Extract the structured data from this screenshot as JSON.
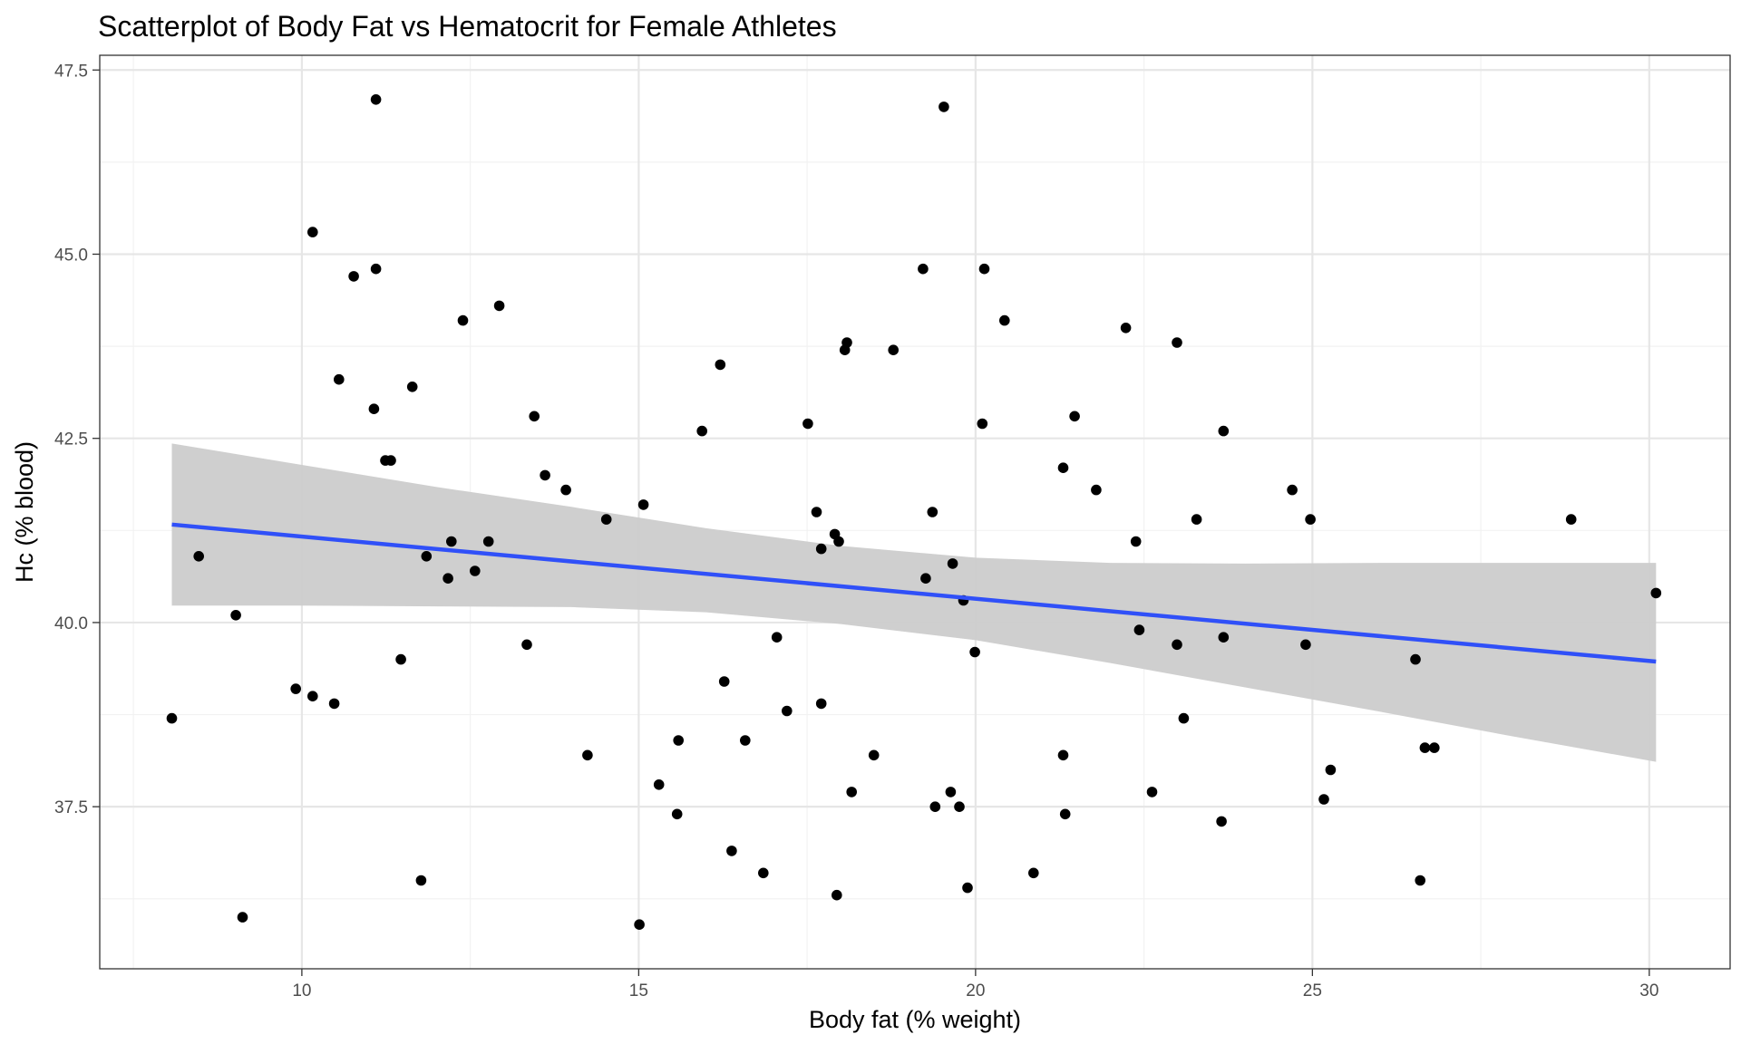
{
  "chart_data": {
    "type": "scatter",
    "title": "Scatterplot of Body Fat vs Hematocrit for Female Athletes",
    "xlabel": "Body fat (% weight)",
    "ylabel": "Hc (% blood)",
    "xlim": [
      7.0,
      31.2
    ],
    "ylim": [
      35.3,
      47.7
    ],
    "x_ticks": [
      10,
      15,
      20,
      25,
      30
    ],
    "x_tick_labels": [
      "10",
      "15",
      "20",
      "25",
      "30"
    ],
    "y_ticks": [
      37.5,
      40.0,
      42.5,
      45.0,
      47.5
    ],
    "y_tick_labels": [
      "37.5",
      "40.0",
      "42.5",
      "45.0",
      "47.5"
    ],
    "grid": true,
    "legend": "none",
    "colors": {
      "points": "#000000",
      "fit_line": "#3050f8",
      "confidence_band": "#cccccc",
      "grid_major": "#e6e6e6",
      "grid_minor": "#f2f2f2",
      "panel_border": "#333333"
    },
    "points": [
      {
        "x": 8.07,
        "y": 38.7
      },
      {
        "x": 8.47,
        "y": 40.9
      },
      {
        "x": 9.02,
        "y": 40.1
      },
      {
        "x": 9.12,
        "y": 36.0
      },
      {
        "x": 9.91,
        "y": 39.1
      },
      {
        "x": 10.16,
        "y": 45.3
      },
      {
        "x": 10.16,
        "y": 39.0
      },
      {
        "x": 10.48,
        "y": 38.9
      },
      {
        "x": 10.55,
        "y": 43.3
      },
      {
        "x": 10.77,
        "y": 44.7
      },
      {
        "x": 11.07,
        "y": 42.9
      },
      {
        "x": 11.1,
        "y": 44.8
      },
      {
        "x": 11.1,
        "y": 47.1
      },
      {
        "x": 11.24,
        "y": 42.2
      },
      {
        "x": 11.32,
        "y": 42.2
      },
      {
        "x": 11.47,
        "y": 39.5
      },
      {
        "x": 11.64,
        "y": 43.2
      },
      {
        "x": 11.77,
        "y": 36.5
      },
      {
        "x": 11.85,
        "y": 40.9
      },
      {
        "x": 12.17,
        "y": 40.6
      },
      {
        "x": 12.22,
        "y": 41.1
      },
      {
        "x": 12.39,
        "y": 44.1
      },
      {
        "x": 12.57,
        "y": 40.7
      },
      {
        "x": 12.77,
        "y": 41.1
      },
      {
        "x": 12.93,
        "y": 44.3
      },
      {
        "x": 13.34,
        "y": 39.7
      },
      {
        "x": 13.45,
        "y": 42.8
      },
      {
        "x": 13.61,
        "y": 42.0
      },
      {
        "x": 13.92,
        "y": 41.8
      },
      {
        "x": 14.24,
        "y": 38.2
      },
      {
        "x": 14.52,
        "y": 41.4
      },
      {
        "x": 15.01,
        "y": 35.9
      },
      {
        "x": 15.07,
        "y": 41.6
      },
      {
        "x": 15.3,
        "y": 37.8
      },
      {
        "x": 15.57,
        "y": 37.4
      },
      {
        "x": 15.59,
        "y": 38.4
      },
      {
        "x": 15.94,
        "y": 42.6
      },
      {
        "x": 16.21,
        "y": 43.5
      },
      {
        "x": 16.27,
        "y": 39.2
      },
      {
        "x": 16.38,
        "y": 36.9
      },
      {
        "x": 16.58,
        "y": 38.4
      },
      {
        "x": 16.85,
        "y": 36.6
      },
      {
        "x": 17.05,
        "y": 39.8
      },
      {
        "x": 17.2,
        "y": 38.8
      },
      {
        "x": 17.51,
        "y": 42.7
      },
      {
        "x": 17.64,
        "y": 41.5
      },
      {
        "x": 17.71,
        "y": 41.0
      },
      {
        "x": 17.71,
        "y": 38.9
      },
      {
        "x": 17.91,
        "y": 41.2
      },
      {
        "x": 17.94,
        "y": 36.3
      },
      {
        "x": 17.97,
        "y": 41.1
      },
      {
        "x": 18.06,
        "y": 43.7
      },
      {
        "x": 18.09,
        "y": 43.8
      },
      {
        "x": 18.16,
        "y": 37.7
      },
      {
        "x": 18.49,
        "y": 38.2
      },
      {
        "x": 18.78,
        "y": 43.7
      },
      {
        "x": 19.22,
        "y": 44.8
      },
      {
        "x": 19.26,
        "y": 40.6
      },
      {
        "x": 19.36,
        "y": 41.5
      },
      {
        "x": 19.4,
        "y": 37.5
      },
      {
        "x": 19.53,
        "y": 47.0
      },
      {
        "x": 19.63,
        "y": 37.7
      },
      {
        "x": 19.66,
        "y": 40.8
      },
      {
        "x": 19.76,
        "y": 37.5
      },
      {
        "x": 19.82,
        "y": 40.3
      },
      {
        "x": 19.88,
        "y": 36.4
      },
      {
        "x": 19.99,
        "y": 39.6
      },
      {
        "x": 20.1,
        "y": 42.7
      },
      {
        "x": 20.13,
        "y": 44.8
      },
      {
        "x": 20.43,
        "y": 44.1
      },
      {
        "x": 20.86,
        "y": 36.6
      },
      {
        "x": 21.3,
        "y": 42.1
      },
      {
        "x": 21.3,
        "y": 38.2
      },
      {
        "x": 21.33,
        "y": 37.4
      },
      {
        "x": 21.47,
        "y": 42.8
      },
      {
        "x": 21.79,
        "y": 41.8
      },
      {
        "x": 22.23,
        "y": 44.0
      },
      {
        "x": 22.38,
        "y": 41.1
      },
      {
        "x": 22.43,
        "y": 39.9
      },
      {
        "x": 22.62,
        "y": 37.7
      },
      {
        "x": 22.99,
        "y": 43.8
      },
      {
        "x": 22.99,
        "y": 39.7
      },
      {
        "x": 23.09,
        "y": 38.7
      },
      {
        "x": 23.28,
        "y": 41.4
      },
      {
        "x": 23.65,
        "y": 37.3
      },
      {
        "x": 23.68,
        "y": 42.6
      },
      {
        "x": 23.68,
        "y": 39.8
      },
      {
        "x": 24.7,
        "y": 41.8
      },
      {
        "x": 24.9,
        "y": 39.7
      },
      {
        "x": 24.97,
        "y": 41.4
      },
      {
        "x": 25.17,
        "y": 37.6
      },
      {
        "x": 25.27,
        "y": 38.0
      },
      {
        "x": 26.53,
        "y": 39.5
      },
      {
        "x": 26.6,
        "y": 36.5
      },
      {
        "x": 26.67,
        "y": 38.3
      },
      {
        "x": 26.81,
        "y": 38.3
      },
      {
        "x": 28.84,
        "y": 41.4
      },
      {
        "x": 30.1,
        "y": 40.4
      }
    ],
    "fit_line": {
      "x": [
        8.07,
        30.1
      ],
      "y": [
        41.33,
        39.47
      ]
    },
    "confidence_band": {
      "x": [
        8.07,
        10,
        12,
        14,
        16,
        18,
        20,
        22,
        24,
        26,
        28,
        30.1
      ],
      "upper": [
        42.43,
        42.14,
        41.84,
        41.57,
        41.28,
        41.04,
        40.88,
        40.81,
        40.8,
        40.81,
        40.81,
        40.81
      ],
      "lower": [
        40.23,
        40.23,
        40.22,
        40.21,
        40.14,
        39.98,
        39.76,
        39.45,
        39.12,
        38.79,
        38.45,
        38.11
      ]
    }
  }
}
